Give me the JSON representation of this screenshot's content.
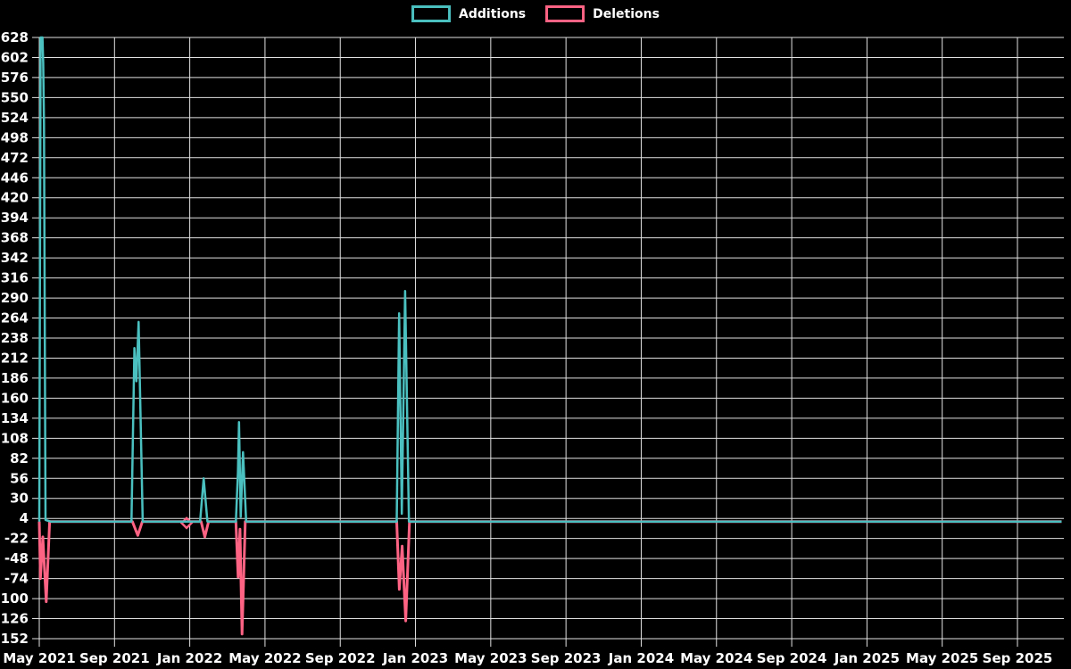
{
  "legend": {
    "position": "top",
    "items": [
      {
        "label": "Additions",
        "color": "#4bc0c0"
      },
      {
        "label": "Deletions",
        "color": "#ff6384"
      }
    ]
  },
  "chart_data": {
    "type": "line",
    "title": "",
    "xlabel": "",
    "ylabel": "",
    "background_color": "#000000",
    "grid_color": "#e2e2e2",
    "text_color": "#ffffff",
    "grid": true,
    "legend_position": "top",
    "x_axis": {
      "unit": "months since May 2021",
      "ticks": [
        {
          "label": "May 2021",
          "m": 0
        },
        {
          "label": "Sep 2021",
          "m": 4
        },
        {
          "label": "Jan 2022",
          "m": 8
        },
        {
          "label": "May 2022",
          "m": 12
        },
        {
          "label": "Sep 2022",
          "m": 16
        },
        {
          "label": "Jan 2023",
          "m": 20
        },
        {
          "label": "May 2023",
          "m": 24
        },
        {
          "label": "Sep 2023",
          "m": 28
        },
        {
          "label": "Jan 2024",
          "m": 32
        },
        {
          "label": "May 2024",
          "m": 36
        },
        {
          "label": "Sep 2024",
          "m": 40
        },
        {
          "label": "Jan 2025",
          "m": 44
        },
        {
          "label": "May 2025",
          "m": 48
        },
        {
          "label": "Sep 2025",
          "m": 52
        }
      ]
    },
    "y_axis": {
      "min": -152,
      "max": 628,
      "step": 26,
      "tick_labels": [
        "628",
        "602",
        "576",
        "550",
        "524",
        "498",
        "472",
        "446",
        "420",
        "394",
        "368",
        "342",
        "316",
        "290",
        "264",
        "238",
        "212",
        "186",
        "160",
        "134",
        "108",
        "82",
        "56",
        "30",
        "4",
        "-22",
        "-48",
        "-74",
        "-100",
        "-126",
        "-152"
      ]
    },
    "series": [
      {
        "name": "Deletions",
        "color": "#ff6384",
        "line_width": 3,
        "points": [
          [
            0.0,
            0
          ],
          [
            0.06,
            -74
          ],
          [
            0.19,
            -20
          ],
          [
            0.37,
            -104
          ],
          [
            0.55,
            0
          ],
          [
            4.95,
            0
          ],
          [
            5.24,
            -18
          ],
          [
            5.48,
            0
          ],
          [
            8.6,
            0
          ],
          [
            8.8,
            -20
          ],
          [
            9.0,
            0
          ],
          [
            10.45,
            0
          ],
          [
            10.57,
            -72
          ],
          [
            10.67,
            -10
          ],
          [
            10.78,
            -146
          ],
          [
            10.95,
            0
          ],
          [
            19.0,
            0
          ],
          [
            19.14,
            -88
          ],
          [
            19.29,
            -32
          ],
          [
            19.48,
            -129
          ],
          [
            19.68,
            0
          ],
          [
            54.35,
            0
          ]
        ],
        "markers": [
          {
            "m": 7.83,
            "v": -2,
            "shape": "diamond"
          }
        ]
      },
      {
        "name": "Additions",
        "color": "#4bc0c0",
        "line_width": 2.5,
        "points": [
          [
            0.0,
            0
          ],
          [
            0.07,
            628
          ],
          [
            0.17,
            628
          ],
          [
            0.21,
            595
          ],
          [
            0.25,
            516
          ],
          [
            0.33,
            2
          ],
          [
            0.6,
            0
          ],
          [
            4.9,
            0
          ],
          [
            5.06,
            225
          ],
          [
            5.16,
            182
          ],
          [
            5.28,
            259
          ],
          [
            5.5,
            0
          ],
          [
            8.55,
            0
          ],
          [
            8.74,
            56
          ],
          [
            8.94,
            0
          ],
          [
            10.45,
            0
          ],
          [
            10.56,
            64
          ],
          [
            10.62,
            129
          ],
          [
            10.71,
            6
          ],
          [
            10.83,
            90
          ],
          [
            11.0,
            0
          ],
          [
            19.0,
            0
          ],
          [
            19.13,
            270
          ],
          [
            19.27,
            10
          ],
          [
            19.45,
            299
          ],
          [
            19.65,
            0
          ],
          [
            54.35,
            0
          ]
        ],
        "markers": []
      }
    ]
  }
}
